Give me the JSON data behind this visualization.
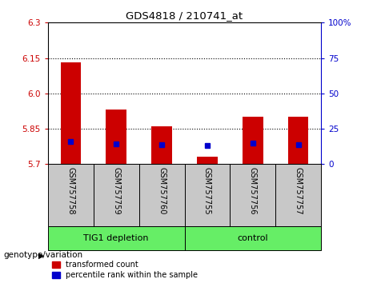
{
  "title": "GDS4818 / 210741_at",
  "samples": [
    "GSM757758",
    "GSM757759",
    "GSM757760",
    "GSM757755",
    "GSM757756",
    "GSM757757"
  ],
  "red_values": [
    6.13,
    5.93,
    5.86,
    5.73,
    5.9,
    5.9
  ],
  "blue_values": [
    5.795,
    5.785,
    5.782,
    5.778,
    5.79,
    5.782
  ],
  "y_min": 5.7,
  "y_max": 6.3,
  "y_ticks": [
    5.7,
    5.85,
    6.0,
    6.15,
    6.3
  ],
  "y2_ticks": [
    0,
    25,
    50,
    75,
    100
  ],
  "y2_tick_labels": [
    "0",
    "25",
    "50",
    "75",
    "100%"
  ],
  "group_bg_color": "#c8c8c8",
  "bar_width": 0.45,
  "red_color": "#cc0000",
  "blue_color": "#0000cc",
  "left_label_color": "#cc0000",
  "right_label_color": "#0000cc",
  "green_color": "#66ee66",
  "legend_items": [
    "transformed count",
    "percentile rank within the sample"
  ],
  "genotype_label": "genotype/variation",
  "group_labels": [
    "TIG1 depletion",
    "control"
  ],
  "group_ranges": [
    [
      0,
      3
    ],
    [
      3,
      6
    ]
  ]
}
